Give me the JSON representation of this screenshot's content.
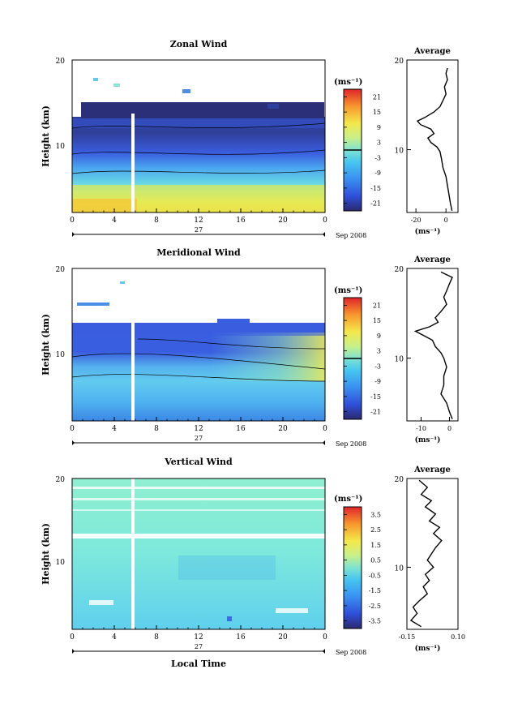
{
  "chart_data": [
    {
      "type": "heatmap",
      "title": "Zonal Wind",
      "ylabel": "Height (km)",
      "yticks": [
        "20",
        "10"
      ],
      "ylim": [
        3,
        20
      ],
      "xticks": [
        "0",
        "4",
        "8",
        "12",
        "16",
        "20",
        "0"
      ],
      "xlim": [
        0,
        24
      ],
      "date_day": "27",
      "date_label": "Sep 2008",
      "colorbar": {
        "unit": "(ms⁻¹)",
        "ticks": [
          "21",
          "15",
          "9",
          "3",
          "-3",
          "-9",
          "-15",
          "-21"
        ],
        "range": [
          -24,
          24
        ],
        "zero_line": 0
      },
      "profile": {
        "title": "Average",
        "unit": "(ms⁻¹)",
        "xticks": [
          "-20",
          "0"
        ],
        "xlim": [
          -26,
          8
        ],
        "yticks": [
          "20",
          "10"
        ],
        "ylim": [
          3,
          20
        ],
        "heights": [
          19.1,
          18.5,
          17.8,
          17.0,
          16.2,
          15.5,
          14.8,
          14.2,
          13.6,
          13.2,
          12.8,
          12.3,
          11.8,
          11.3,
          10.8,
          10.3,
          9.8,
          9.0,
          8.0,
          7.0,
          6.0,
          5.0,
          4.0,
          3.2
        ],
        "values": [
          1,
          0,
          1,
          -1,
          0,
          -2,
          -4,
          -8,
          -14,
          -19,
          -17,
          -10,
          -8,
          -12,
          -10,
          -6,
          -4,
          -3,
          -2,
          0,
          1,
          2,
          3,
          4
        ]
      }
    },
    {
      "type": "heatmap",
      "title": "Meridional Wind",
      "ylabel": "Height (km)",
      "yticks": [
        "20",
        "10"
      ],
      "ylim": [
        3,
        20
      ],
      "xticks": [
        "0",
        "4",
        "8",
        "12",
        "16",
        "20",
        "0"
      ],
      "xlim": [
        0,
        24
      ],
      "date_day": "27",
      "date_label": "Sep 2008",
      "colorbar": {
        "unit": "(ms⁻¹)",
        "ticks": [
          "21",
          "15",
          "9",
          "3",
          "-3",
          "-9",
          "-15",
          "-21"
        ],
        "range": [
          -24,
          24
        ],
        "zero_line": 0
      },
      "profile": {
        "title": "Average",
        "unit": "(ms⁻¹)",
        "xticks": [
          "-10",
          "0"
        ],
        "xlim": [
          -15,
          3
        ],
        "yticks": [
          "20",
          "10"
        ],
        "ylim": [
          3,
          20
        ],
        "heights": [
          19.6,
          19.0,
          18.3,
          17.5,
          16.8,
          16.0,
          15.2,
          14.5,
          14.0,
          13.5,
          13.0,
          12.5,
          12.0,
          11.3,
          10.6,
          10.0,
          9.0,
          8.0,
          7.0,
          6.0,
          5.0,
          4.0,
          3.2
        ],
        "values": [
          -3,
          1,
          0,
          -1,
          -2,
          -1,
          -3,
          -5,
          -4,
          -7,
          -12,
          -9,
          -6,
          -5,
          -3,
          -2,
          -1,
          -2,
          -2,
          -3,
          -1,
          0,
          1
        ]
      }
    },
    {
      "type": "heatmap",
      "title": "Vertical Wind",
      "ylabel": "Height (km)",
      "yticks": [
        "20",
        "10"
      ],
      "ylim": [
        3,
        20
      ],
      "xticks": [
        "0",
        "4",
        "8",
        "12",
        "16",
        "20",
        "0"
      ],
      "xlim": [
        0,
        24
      ],
      "date_day": "27",
      "date_label": "Sep 2008",
      "xlabel": "Local Time",
      "colorbar": {
        "unit": "(ms⁻¹)",
        "ticks": [
          "3.5",
          "2.5",
          "1.5",
          "0.5",
          "-0.5",
          "-1.5",
          "-2.5",
          "-3.5"
        ],
        "range": [
          -4,
          4
        ],
        "zero_line": null
      },
      "profile": {
        "title": "Average",
        "unit": "(ms⁻¹)",
        "xticks": [
          "-0.15",
          "0.10"
        ],
        "xlim": [
          -0.15,
          0.1
        ],
        "yticks": [
          "20",
          "10"
        ],
        "ylim": [
          3,
          20
        ],
        "heights": [
          19.8,
          19.0,
          18.2,
          17.5,
          16.8,
          16.0,
          15.2,
          14.5,
          13.8,
          13.0,
          12.2,
          11.5,
          10.8,
          10.0,
          9.2,
          8.5,
          7.8,
          7.0,
          6.2,
          5.5,
          4.8,
          4.0,
          3.3
        ],
        "values": [
          -0.09,
          -0.05,
          -0.08,
          -0.03,
          -0.06,
          -0.01,
          -0.04,
          0.01,
          -0.02,
          0.02,
          -0.01,
          -0.03,
          -0.05,
          -0.02,
          -0.06,
          -0.04,
          -0.07,
          -0.05,
          -0.09,
          -0.12,
          -0.1,
          -0.13,
          -0.08
        ]
      }
    }
  ]
}
